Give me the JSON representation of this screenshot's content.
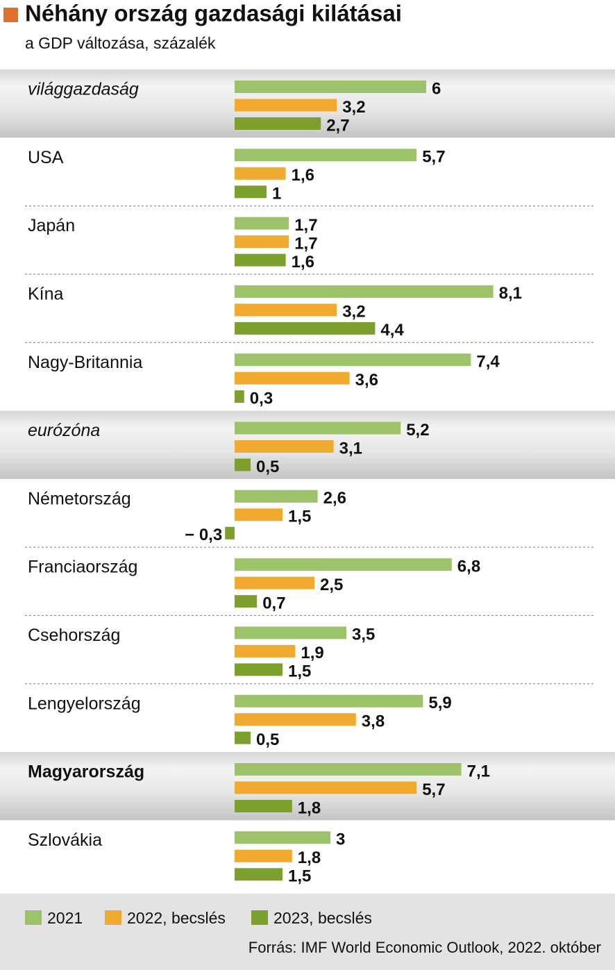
{
  "chart_data": {
    "type": "bar",
    "orientation": "horizontal",
    "title": "Néhány ország gazdasági kilátásai",
    "subtitle": "a GDP változása, százalék",
    "source": "Forrás: IMF World Economic Outlook, 2022. október",
    "title_marker_color": "#e0712a",
    "categories": [
      "világgazdaság",
      "USA",
      "Japán",
      "Kína",
      "Nagy-Britannia",
      "eurózóna",
      "Németország",
      "Franciaország",
      "Csehország",
      "Lengyelország",
      "Magyarország",
      "Szlovákia"
    ],
    "series": [
      {
        "name": "2021",
        "color": "#9cc26a",
        "values": [
          6,
          5.7,
          1.7,
          8.1,
          7.4,
          5.2,
          2.6,
          6.8,
          3.5,
          5.9,
          7.1,
          3
        ],
        "value_labels": [
          "6",
          "5,7",
          "1,7",
          "8,1",
          "7,4",
          "5,2",
          "2,6",
          "6,8",
          "3,5",
          "5,9",
          "7,1",
          "3"
        ]
      },
      {
        "name": "2022, becslés",
        "color": "#f0aa30",
        "values": [
          3.2,
          1.6,
          1.7,
          3.2,
          3.6,
          3.1,
          1.5,
          2.5,
          1.9,
          3.8,
          5.7,
          1.8
        ],
        "value_labels": [
          "3,2",
          "1,6",
          "1,7",
          "3,2",
          "3,6",
          "3,1",
          "1,5",
          "2,5",
          "1,9",
          "3,8",
          "5,7",
          "1,8"
        ]
      },
      {
        "name": "2023, becslés",
        "color": "#7d9f2e",
        "values": [
          2.7,
          1,
          1.6,
          4.4,
          0.3,
          0.5,
          -0.3,
          0.7,
          1.5,
          0.5,
          1.8,
          1.5
        ],
        "value_labels": [
          "2,7",
          "1",
          "1,6",
          "4,4",
          "0,3",
          "0,5",
          "− 0,3",
          "0,7",
          "1,5",
          "0,5",
          "1,8",
          "1,5"
        ]
      }
    ]
  }
}
